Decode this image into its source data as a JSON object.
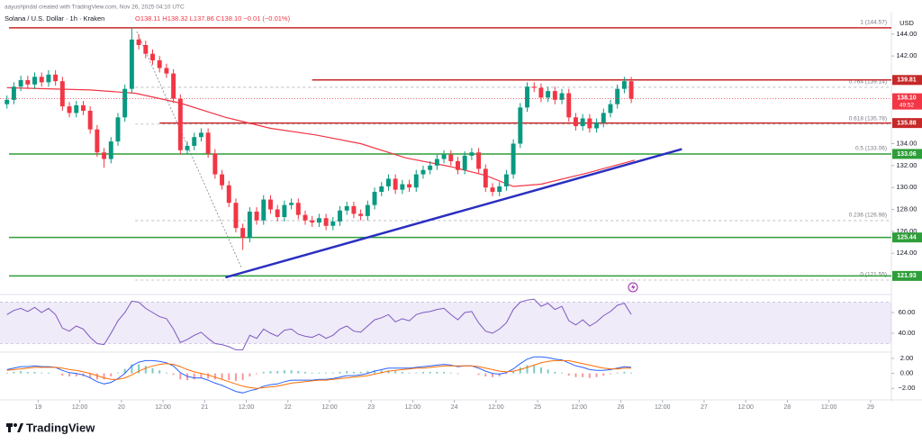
{
  "header": {
    "credit": "aayushjindal created with TradingView.com, Nov 26, 2025 04:10 UTC",
    "symbol": "Solana / U.S. Dollar · 1h · Kraken",
    "ohlc": "O138.11 H138.32 L137.86 C138.10 −0.01 (−0.01%)"
  },
  "footer": {
    "logo": "TradingView"
  },
  "chart_data": {
    "type": "candlestick",
    "grid": false,
    "up_color": "#089981",
    "down_color": "#f23645",
    "y_axis_label": "USD",
    "xlim": [
      -11,
      246
    ],
    "xticks": [
      {
        "value": 0,
        "label": "19"
      },
      {
        "value": 12,
        "label": "12:00"
      },
      {
        "value": 24,
        "label": "20"
      },
      {
        "value": 36,
        "label": "12:00"
      },
      {
        "value": 48,
        "label": "21"
      },
      {
        "value": 60,
        "label": "12:00"
      },
      {
        "value": 72,
        "label": "22"
      },
      {
        "value": 84,
        "label": "12:00"
      },
      {
        "value": 96,
        "label": "23"
      },
      {
        "value": 108,
        "label": "12:00"
      },
      {
        "value": 120,
        "label": "24"
      },
      {
        "value": 132,
        "label": "12:00"
      },
      {
        "value": 144,
        "label": "25"
      },
      {
        "value": 156,
        "label": "12:00"
      },
      {
        "value": 168,
        "label": "26"
      },
      {
        "value": 180,
        "label": "12:00"
      },
      {
        "value": 192,
        "label": "27"
      },
      {
        "value": 204,
        "label": "12:00"
      },
      {
        "value": 216,
        "label": "28"
      },
      {
        "value": 228,
        "label": "12:00"
      },
      {
        "value": 240,
        "label": "29"
      }
    ],
    "ylim": [
      120.4,
      145.3
    ],
    "yticks": [
      {
        "value": 144,
        "label": "144.00"
      },
      {
        "value": 142,
        "label": "142.00"
      },
      {
        "value": 134,
        "label": "134.00"
      },
      {
        "value": 132,
        "label": "132.00"
      },
      {
        "value": 130,
        "label": "130.00"
      },
      {
        "value": 128,
        "label": "128.00"
      },
      {
        "value": 126,
        "label": "126.00"
      },
      {
        "value": 124,
        "label": "124.00"
      }
    ],
    "x": [
      -9,
      -7,
      -5,
      -3,
      -1,
      1,
      3,
      5,
      7,
      9,
      11,
      13,
      15,
      17,
      19,
      21,
      23,
      25,
      27,
      29,
      31,
      33,
      35,
      37,
      39,
      41,
      43,
      45,
      47,
      49,
      51,
      53,
      55,
      57,
      59,
      61,
      63,
      65,
      67,
      69,
      71,
      73,
      75,
      77,
      79,
      81,
      83,
      85,
      87,
      89,
      91,
      93,
      95,
      97,
      99,
      101,
      103,
      105,
      107,
      109,
      111,
      113,
      115,
      117,
      119,
      121,
      123,
      125,
      127,
      129,
      131,
      133,
      135,
      137,
      139,
      141,
      143,
      145,
      147,
      149,
      151,
      153,
      155,
      157,
      159,
      161,
      163,
      165,
      167,
      169,
      171
    ],
    "open": [
      137.6,
      138.0,
      139.2,
      139.8,
      139.4,
      140.1,
      139.6,
      140.3,
      139.7,
      137.4,
      136.8,
      137.5,
      137.0,
      135.3,
      133.2,
      132.6,
      134.2,
      136.4,
      139.0,
      143.5,
      143.0,
      142.2,
      141.6,
      140.9,
      140.4,
      138.1,
      133.4,
      133.8,
      134.6,
      135.0,
      133.1,
      131.2,
      130.2,
      128.6,
      126.3,
      125.4,
      127.8,
      127.0,
      128.9,
      128.0,
      127.3,
      128.4,
      128.6,
      127.5,
      127.0,
      126.8,
      127.2,
      126.5,
      126.9,
      127.9,
      128.3,
      127.6,
      127.4,
      128.4,
      129.6,
      130.1,
      130.8,
      129.8,
      130.3,
      130.0,
      131.2,
      131.6,
      132.0,
      132.6,
      133.0,
      132.4,
      131.6,
      132.9,
      133.2,
      131.7,
      130.0,
      129.6,
      130.1,
      131.2,
      134.0,
      137.3,
      139.2,
      139.1,
      138.2,
      138.8,
      138.0,
      138.6,
      136.4,
      135.6,
      136.3,
      135.4,
      135.9,
      136.8,
      137.6,
      139.0,
      139.7
    ],
    "high": [
      138.4,
      139.6,
      140.2,
      140.2,
      140.5,
      140.5,
      140.7,
      140.7,
      140.1,
      137.8,
      137.9,
      137.9,
      137.4,
      135.7,
      133.6,
      134.6,
      136.8,
      139.4,
      144.6,
      144.0,
      143.4,
      142.6,
      142.0,
      141.3,
      140.8,
      138.5,
      134.2,
      135.0,
      135.4,
      135.4,
      133.5,
      131.6,
      130.6,
      129.0,
      126.7,
      128.2,
      128.2,
      129.3,
      129.3,
      128.4,
      128.8,
      129.0,
      129.0,
      127.9,
      127.4,
      127.6,
      127.6,
      127.3,
      128.3,
      128.7,
      128.7,
      128.0,
      128.8,
      130.0,
      130.5,
      131.2,
      131.2,
      130.7,
      130.7,
      131.6,
      132.0,
      132.4,
      133.0,
      133.4,
      133.4,
      132.8,
      133.3,
      133.6,
      133.6,
      132.1,
      130.4,
      130.5,
      131.6,
      134.4,
      137.7,
      139.6,
      139.6,
      139.5,
      139.2,
      139.2,
      139.0,
      139.0,
      136.8,
      136.7,
      136.7,
      136.3,
      137.2,
      138.0,
      139.4,
      140.1,
      140.1
    ],
    "low": [
      137.2,
      137.6,
      138.8,
      139.0,
      139.0,
      139.2,
      139.2,
      139.3,
      137.0,
      136.4,
      136.4,
      136.6,
      134.9,
      132.8,
      131.8,
      132.2,
      133.8,
      136.0,
      138.6,
      142.6,
      141.8,
      141.2,
      140.5,
      140.0,
      137.7,
      133.0,
      133.0,
      133.4,
      134.2,
      132.7,
      130.8,
      129.8,
      128.2,
      125.9,
      124.3,
      125.0,
      126.6,
      126.6,
      127.6,
      126.9,
      126.9,
      128.0,
      127.1,
      126.6,
      126.4,
      126.4,
      126.1,
      126.1,
      126.5,
      127.5,
      127.2,
      127.0,
      127.0,
      128.0,
      129.2,
      129.7,
      129.4,
      129.4,
      129.6,
      129.6,
      130.8,
      131.2,
      131.6,
      132.2,
      132.0,
      131.2,
      131.2,
      132.5,
      131.3,
      129.6,
      129.2,
      129.2,
      129.7,
      130.8,
      133.6,
      136.9,
      138.7,
      137.8,
      137.8,
      137.6,
      137.6,
      136.0,
      135.2,
      135.2,
      135.0,
      135.0,
      135.5,
      136.4,
      137.2,
      138.6,
      137.7
    ],
    "close": [
      138.0,
      139.2,
      139.8,
      139.4,
      140.1,
      139.6,
      140.3,
      139.7,
      137.4,
      136.8,
      137.5,
      137.0,
      135.3,
      133.2,
      132.6,
      134.2,
      136.4,
      139.0,
      143.5,
      143.0,
      142.2,
      141.6,
      140.9,
      140.4,
      138.1,
      133.4,
      133.8,
      134.6,
      135.0,
      133.1,
      131.2,
      130.2,
      128.6,
      126.3,
      125.4,
      127.8,
      127.0,
      128.9,
      128.0,
      127.3,
      128.4,
      128.6,
      127.5,
      127.0,
      126.8,
      127.2,
      126.5,
      126.9,
      127.9,
      128.3,
      127.6,
      127.4,
      128.4,
      129.6,
      130.1,
      130.8,
      129.8,
      130.3,
      130.0,
      131.2,
      131.6,
      132.0,
      132.6,
      133.0,
      132.4,
      131.6,
      132.9,
      133.2,
      131.7,
      130.0,
      129.6,
      130.1,
      131.2,
      134.0,
      137.3,
      139.2,
      139.1,
      138.2,
      138.8,
      138.0,
      138.6,
      136.4,
      135.6,
      136.3,
      135.4,
      135.9,
      136.8,
      137.6,
      139.0,
      139.7,
      138.1
    ],
    "moving_average": {
      "color": "#f23645",
      "x": [
        -9,
        15,
        28,
        41,
        54,
        67,
        80,
        93,
        106,
        119,
        129,
        137,
        145,
        158,
        172
      ],
      "values": [
        139.1,
        138.9,
        138.6,
        137.7,
        136.4,
        135.4,
        134.8,
        134.0,
        132.7,
        131.9,
        131.1,
        130.1,
        130.3,
        131.3,
        132.5
      ]
    },
    "trendline": {
      "color": "#2a2fc0",
      "x": [
        54,
        185.6
      ],
      "values": [
        121.8,
        133.5
      ]
    },
    "levels": [
      {
        "value": 144.57,
        "color": "#c62828"
      },
      {
        "value": 139.81,
        "color": "#c62828",
        "x_from": 79,
        "label": "139.81"
      },
      {
        "value": 135.88,
        "color": "#c62828",
        "x_from": 35,
        "label": "135.88"
      },
      {
        "value": 133.06,
        "color": "#2e9e3a",
        "label": "133.06"
      },
      {
        "value": 125.44,
        "color": "#2e9e3a",
        "label": "125.44"
      },
      {
        "value": 121.93,
        "color": "#2e9e3a",
        "label": "121.93"
      }
    ],
    "last_price": {
      "value": 138.1,
      "label": "138.10",
      "countdown": "49:52",
      "color": "#f23645"
    },
    "fib_levels": [
      {
        "value": 144.57,
        "label": "1 (144.57)"
      },
      {
        "value": 139.14,
        "label": "0.764 (139.14)"
      },
      {
        "value": 135.78,
        "label": "0.618 (135.78)"
      },
      {
        "value": 133.06,
        "label": "0.5 (133.06)"
      },
      {
        "value": 126.98,
        "label": "0.236 (126.98)"
      },
      {
        "value": 121.55,
        "label": "0 (121.55)"
      }
    ],
    "fib_x_from": 28,
    "rsi": {
      "color": "#7e57c2",
      "band": [
        30,
        70
      ],
      "ylim": [
        22.6,
        74.8
      ],
      "yticks": [
        {
          "value": 60,
          "label": "60.00"
        },
        {
          "value": 40,
          "label": "40.00"
        }
      ],
      "values": [
        58,
        62,
        64,
        61,
        65,
        60,
        64,
        58,
        45,
        42,
        47,
        44,
        36,
        30,
        29,
        40,
        52,
        60,
        71,
        70,
        64,
        60,
        56,
        54,
        44,
        31,
        34,
        38,
        41,
        35,
        30,
        29,
        27,
        24,
        24,
        38,
        35,
        44,
        40,
        37,
        43,
        44,
        39,
        37,
        36,
        39,
        35,
        38,
        44,
        47,
        42,
        41,
        47,
        53,
        55,
        58,
        51,
        54,
        52,
        58,
        60,
        61,
        63,
        64,
        58,
        53,
        60,
        61,
        50,
        42,
        40,
        44,
        50,
        63,
        70,
        72,
        73,
        66,
        69,
        63,
        66,
        52,
        48,
        53,
        47,
        51,
        57,
        61,
        67,
        69,
        58
      ]
    },
    "macd": {
      "color": "#2962ff",
      "signal_color": "#ff6d00",
      "up_color": "#26a69a",
      "down_color": "#ef5350",
      "ylim": [
        -3.29,
        2.59
      ],
      "yticks": [
        {
          "value": 2,
          "label": "2.00"
        },
        {
          "value": 0,
          "label": "0.00"
        },
        {
          "value": -2,
          "label": "−2.00"
        }
      ],
      "values": [
        0.5,
        0.7,
        0.9,
        0.9,
        1.0,
        0.9,
        0.9,
        0.8,
        0.4,
        0.1,
        0.0,
        -0.2,
        -0.6,
        -1.1,
        -1.4,
        -1.2,
        -0.7,
        0.0,
        1.0,
        1.5,
        1.7,
        1.7,
        1.6,
        1.4,
        1.0,
        0.1,
        -0.4,
        -0.6,
        -0.6,
        -0.9,
        -1.3,
        -1.6,
        -2.0,
        -2.4,
        -2.6,
        -2.3,
        -2.1,
        -1.7,
        -1.5,
        -1.4,
        -1.1,
        -0.9,
        -0.9,
        -0.9,
        -0.9,
        -0.8,
        -0.8,
        -0.7,
        -0.5,
        -0.3,
        -0.3,
        -0.2,
        0.0,
        0.3,
        0.5,
        0.7,
        0.7,
        0.7,
        0.7,
        0.8,
        0.9,
        1.0,
        1.1,
        1.2,
        1.1,
        0.9,
        1.0,
        1.0,
        0.7,
        0.3,
        0.0,
        -0.1,
        0.1,
        0.6,
        1.3,
        1.9,
        2.2,
        2.2,
        2.1,
        1.9,
        1.8,
        1.4,
        1.0,
        0.8,
        0.5,
        0.4,
        0.4,
        0.5,
        0.7,
        0.9,
        0.8
      ],
      "signal": [
        0.4,
        0.5,
        0.6,
        0.7,
        0.8,
        0.8,
        0.8,
        0.8,
        0.7,
        0.5,
        0.4,
        0.2,
        0.0,
        -0.3,
        -0.6,
        -0.8,
        -0.8,
        -0.6,
        -0.2,
        0.3,
        0.7,
        1.0,
        1.2,
        1.3,
        1.2,
        0.9,
        0.5,
        0.2,
        0.0,
        -0.2,
        -0.5,
        -0.8,
        -1.1,
        -1.4,
        -1.7,
        -1.9,
        -2.0,
        -1.9,
        -1.8,
        -1.7,
        -1.5,
        -1.3,
        -1.2,
        -1.1,
        -1.0,
        -0.9,
        -0.9,
        -0.8,
        -0.7,
        -0.6,
        -0.5,
        -0.4,
        -0.3,
        -0.1,
        0.1,
        0.3,
        0.4,
        0.5,
        0.6,
        0.7,
        0.7,
        0.8,
        0.9,
        1.0,
        1.0,
        1.0,
        1.0,
        1.0,
        0.9,
        0.7,
        0.5,
        0.3,
        0.2,
        0.3,
        0.5,
        0.8,
        1.1,
        1.4,
        1.6,
        1.7,
        1.7,
        1.7,
        1.5,
        1.3,
        1.1,
        0.9,
        0.7,
        0.6,
        0.6,
        0.7,
        0.7
      ],
      "histogram": [
        0.1,
        0.2,
        0.3,
        0.2,
        0.2,
        0.1,
        0.1,
        0.0,
        -0.3,
        -0.4,
        -0.4,
        -0.4,
        -0.6,
        -0.8,
        -0.8,
        -0.4,
        0.1,
        0.6,
        1.2,
        1.2,
        1.0,
        0.7,
        0.4,
        0.1,
        -0.2,
        -0.8,
        -0.9,
        -0.8,
        -0.6,
        -0.7,
        -0.8,
        -0.8,
        -0.9,
        -1.0,
        -0.9,
        -0.4,
        -0.1,
        0.2,
        0.3,
        0.3,
        0.4,
        0.4,
        0.3,
        0.2,
        0.1,
        0.1,
        0.1,
        0.1,
        0.2,
        0.3,
        0.2,
        0.2,
        0.3,
        0.4,
        0.4,
        0.4,
        0.3,
        0.2,
        0.1,
        0.1,
        0.2,
        0.2,
        0.2,
        0.2,
        0.1,
        -0.1,
        0.0,
        0.0,
        -0.2,
        -0.4,
        -0.5,
        -0.4,
        -0.1,
        0.3,
        0.8,
        1.1,
        1.1,
        0.8,
        0.5,
        0.2,
        0.1,
        -0.3,
        -0.5,
        -0.5,
        -0.6,
        -0.5,
        -0.3,
        -0.1,
        0.1,
        0.2,
        0.1
      ]
    }
  }
}
